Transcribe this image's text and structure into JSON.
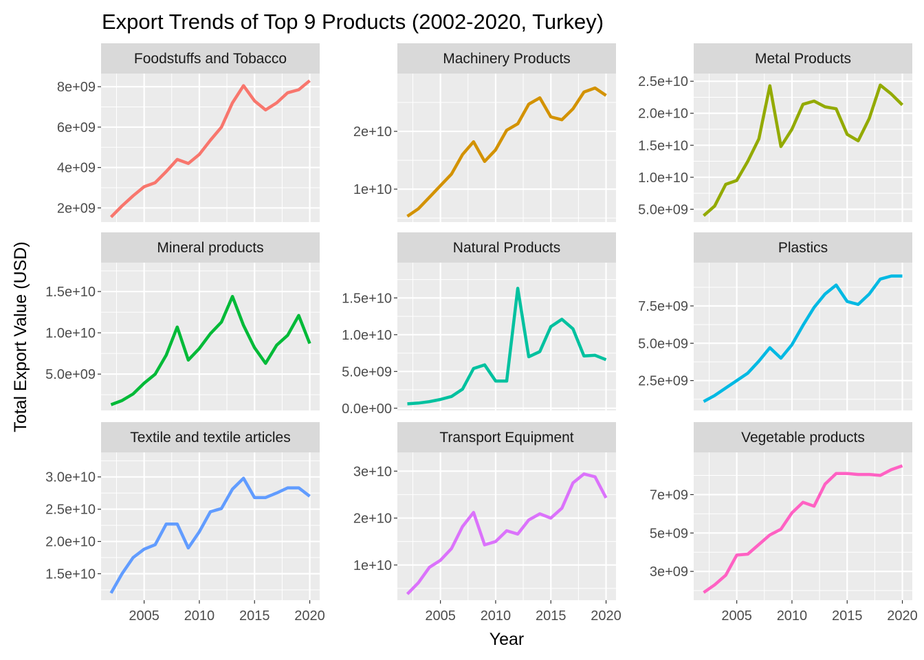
{
  "chart_data": {
    "type": "line",
    "title": "Export Trends of Top 9 Products (2002-2020, Turkey)",
    "xlabel": "Year",
    "ylabel": "Total Export Value (USD)",
    "x": [
      2002,
      2003,
      2004,
      2005,
      2006,
      2007,
      2008,
      2009,
      2010,
      2011,
      2012,
      2013,
      2014,
      2015,
      2016,
      2017,
      2018,
      2019,
      2020
    ],
    "x_ticks": [
      2005,
      2010,
      2015,
      2020
    ],
    "xlim": [
      2001.1,
      2020.9
    ],
    "grid": true,
    "legend": "none",
    "panels": [
      {
        "name": "Foodstuffs and Tobacco",
        "color": "#F8766D",
        "ylim": [
          1300000000.0,
          8650000000.0
        ],
        "y_ticks": [
          2000000000.0,
          4000000000.0,
          6000000000.0,
          8000000000.0
        ],
        "y_tick_labels": [
          "2e+09",
          "4e+09",
          "6e+09",
          "8e+09"
        ],
        "values": [
          1550000000.0,
          2100000000.0,
          2600000000.0,
          3050000000.0,
          3250000000.0,
          3800000000.0,
          4400000000.0,
          4200000000.0,
          4650000000.0,
          5350000000.0,
          6000000000.0,
          7200000000.0,
          8050000000.0,
          7300000000.0,
          6850000000.0,
          7200000000.0,
          7700000000.0,
          7850000000.0,
          8300000000.0
        ]
      },
      {
        "name": "Machinery Products",
        "color": "#D39200",
        "ylim": [
          4300000000.0,
          30000000000.0
        ],
        "y_ticks": [
          10000000000.0,
          20000000000.0
        ],
        "y_tick_labels": [
          "1e+10",
          "2e+10"
        ],
        "values": [
          5300000000.0,
          6600000000.0,
          8600000000.0,
          10600000000.0,
          12600000000.0,
          16000000000.0,
          18200000000.0,
          14800000000.0,
          16800000000.0,
          20200000000.0,
          21300000000.0,
          24700000000.0,
          25800000000.0,
          22500000000.0,
          22000000000.0,
          23900000000.0,
          26800000000.0,
          27500000000.0,
          26200000000.0
        ]
      },
      {
        "name": "Metal Products",
        "color": "#93AA00",
        "ylim": [
          3000000000.0,
          26200000000.0
        ],
        "y_ticks": [
          5000000000.0,
          10000000000.0,
          15000000000.0,
          20000000000.0,
          25000000000.0
        ],
        "y_tick_labels": [
          "5.0e+09",
          "1.0e+10",
          "1.5e+10",
          "2.0e+10",
          "2.5e+10"
        ],
        "values": [
          4000000000.0,
          5500000000.0,
          8900000000.0,
          9500000000.0,
          12500000000.0,
          16000000000.0,
          24300000000.0,
          14800000000.0,
          17500000000.0,
          21400000000.0,
          21900000000.0,
          21000000000.0,
          20700000000.0,
          16700000000.0,
          15700000000.0,
          19200000000.0,
          24400000000.0,
          23000000000.0,
          21300000000.0
        ]
      },
      {
        "name": "Mineral products",
        "color": "#00BA38",
        "ylim": [
          600000000.0,
          18500000000.0
        ],
        "y_ticks": [
          5000000000.0,
          10000000000.0,
          15000000000.0
        ],
        "y_tick_labels": [
          "5.0e+09",
          "1.0e+10",
          "1.5e+10"
        ],
        "values": [
          1300000000.0,
          1800000000.0,
          2600000000.0,
          3900000000.0,
          5000000000.0,
          7300000000.0,
          10700000000.0,
          6700000000.0,
          8100000000.0,
          9900000000.0,
          11300000000.0,
          14400000000.0,
          10900000000.0,
          8200000000.0,
          6300000000.0,
          8500000000.0,
          9700000000.0,
          12100000000.0,
          8700000000.0
        ]
      },
      {
        "name": "Natural Products",
        "color": "#00C19F",
        "ylim": [
          -300000000.0,
          19800000000.0
        ],
        "y_ticks": [
          0,
          5000000000.0,
          10000000000.0,
          15000000000.0
        ],
        "y_tick_labels": [
          "0.0e+00",
          "5.0e+09",
          "1.0e+10",
          "1.5e+10"
        ],
        "values": [
          600000000.0,
          700000000.0,
          900000000.0,
          1200000000.0,
          1600000000.0,
          2600000000.0,
          5400000000.0,
          5900000000.0,
          3700000000.0,
          3700000000.0,
          16300000000.0,
          7000000000.0,
          7700000000.0,
          11100000000.0,
          12100000000.0,
          10800000000.0,
          7100000000.0,
          7200000000.0,
          6600000000.0
        ]
      },
      {
        "name": "Plastics",
        "color": "#00B9E3",
        "ylim": [
          500000000.0,
          10400000000.0
        ],
        "y_ticks": [
          2500000000.0,
          5000000000.0,
          7500000000.0
        ],
        "y_tick_labels": [
          "2.5e+09",
          "5.0e+09",
          "7.5e+09"
        ],
        "values": [
          1100000000.0,
          1500000000.0,
          2000000000.0,
          2500000000.0,
          3000000000.0,
          3800000000.0,
          4700000000.0,
          4000000000.0,
          4900000000.0,
          6200000000.0,
          7400000000.0,
          8300000000.0,
          8900000000.0,
          7800000000.0,
          7600000000.0,
          8300000000.0,
          9300000000.0,
          9500000000.0,
          9500000000.0
        ]
      },
      {
        "name": "Textile and textile articles",
        "color": "#619CFF",
        "ylim": [
          10900000000.0,
          33800000000.0
        ],
        "y_ticks": [
          15000000000.0,
          20000000000.0,
          25000000000.0,
          30000000000.0
        ],
        "y_tick_labels": [
          "1.5e+10",
          "2.0e+10",
          "2.5e+10",
          "3.0e+10"
        ],
        "values": [
          12000000000.0,
          15000000000.0,
          17500000000.0,
          18800000000.0,
          19500000000.0,
          22700000000.0,
          22700000000.0,
          19000000000.0,
          21500000000.0,
          24600000000.0,
          25100000000.0,
          28100000000.0,
          29800000000.0,
          26800000000.0,
          26800000000.0,
          27500000000.0,
          28300000000.0,
          28300000000.0,
          27000000000.0
        ]
      },
      {
        "name": "Transport Equipment",
        "color": "#DB72FB",
        "ylim": [
          2500000000.0,
          34000000000.0
        ],
        "y_ticks": [
          10000000000.0,
          20000000000.0,
          30000000000.0
        ],
        "y_tick_labels": [
          "1e+10",
          "2e+10",
          "3e+10"
        ],
        "values": [
          3800000000.0,
          6200000000.0,
          9500000000.0,
          11000000000.0,
          13500000000.0,
          18200000000.0,
          21200000000.0,
          14300000000.0,
          15000000000.0,
          17300000000.0,
          16600000000.0,
          19600000000.0,
          20900000000.0,
          20000000000.0,
          22100000000.0,
          27500000000.0,
          29400000000.0,
          28800000000.0,
          24300000000.0
        ]
      },
      {
        "name": "Vegetable products",
        "color": "#FF61C3",
        "ylim": [
          1500000000.0,
          9200000000.0
        ],
        "y_ticks": [
          3000000000.0,
          5000000000.0,
          7000000000.0
        ],
        "y_tick_labels": [
          "3e+09",
          "5e+09",
          "7e+09"
        ],
        "values": [
          1900000000.0,
          2300000000.0,
          2800000000.0,
          3850000000.0,
          3900000000.0,
          4400000000.0,
          4900000000.0,
          5200000000.0,
          6050000000.0,
          6600000000.0,
          6400000000.0,
          7550000000.0,
          8100000000.0,
          8100000000.0,
          8050000000.0,
          8050000000.0,
          8000000000.0,
          8300000000.0,
          8500000000.0
        ]
      }
    ]
  }
}
